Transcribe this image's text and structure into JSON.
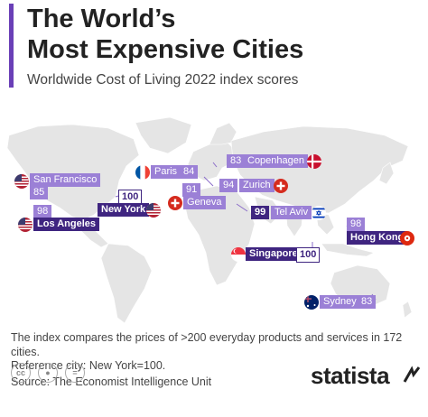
{
  "header": {
    "title_line1": "The World’s",
    "title_line2": "Most Expensive Cities",
    "subtitle": "Worldwide Cost of Living 2022 index scores"
  },
  "colors": {
    "accent": "#6a3fb7",
    "label_light": "#9b80d6",
    "label_dark": "#3f2580",
    "land": "#e5e5e5"
  },
  "cities": [
    {
      "name": "San Francisco",
      "score": "85",
      "country": "USA"
    },
    {
      "name": "Los Angeles",
      "score": "98",
      "country": "USA"
    },
    {
      "name": "New York",
      "score": "100",
      "country": "USA"
    },
    {
      "name": "Paris",
      "score": "84",
      "country": "France"
    },
    {
      "name": "Copenhagen",
      "score": "83",
      "country": "Denmark"
    },
    {
      "name": "Zurich",
      "score": "94",
      "country": "Switzerland"
    },
    {
      "name": "Geneva",
      "score": "91",
      "country": "Switzerland"
    },
    {
      "name": "Tel Aviv",
      "score": "99",
      "country": "Israel"
    },
    {
      "name": "Hong Kong",
      "score": "98",
      "country": "Hong Kong"
    },
    {
      "name": "Singapore",
      "score": "100",
      "country": "Singapore"
    },
    {
      "name": "Sydney",
      "score": "83",
      "country": "Australia"
    }
  ],
  "notes": {
    "line1": "The index compares the prices of >200 everyday products and services in 172 cities.",
    "line2": "Reference city: New York=100.",
    "source": "Source: The Economist Intelligence Unit"
  },
  "footer": {
    "brand": "statista",
    "license_icons": [
      "cc-icon",
      "attribution-icon",
      "no-derivatives-icon"
    ]
  }
}
